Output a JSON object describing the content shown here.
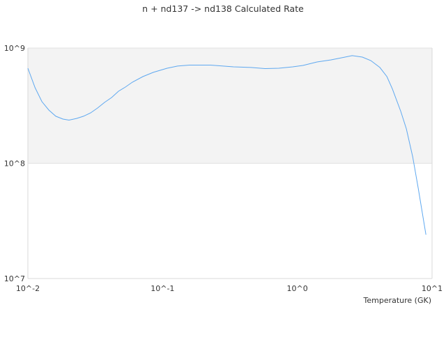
{
  "chart_data": {
    "type": "line",
    "title": "n + nd137 -> nd138 Calculated Rate",
    "xlabel": "Temperature (GK)",
    "ylabel": "",
    "xscale": "log",
    "yscale": "log",
    "xlim": [
      0.01,
      10
    ],
    "ylim": [
      10000000.0,
      1000000000.0
    ],
    "xticks": [
      {
        "value": 0.01,
        "label": "10^-2"
      },
      {
        "value": 0.1,
        "label": "10^-1"
      },
      {
        "value": 1,
        "label": "10^0"
      },
      {
        "value": 10,
        "label": "10^1"
      }
    ],
    "yticks": [
      {
        "value": 10000000.0,
        "label": "10^7"
      },
      {
        "value": 100000000.0,
        "label": "10^8"
      },
      {
        "value": 1000000000.0,
        "label": "10^9"
      }
    ],
    "grid": false,
    "alternating_bands": true,
    "band_color": "#f3f3f3",
    "line_color": "#5ea8f0",
    "series": [
      {
        "x": [
          0.01,
          0.0113,
          0.0127,
          0.0143,
          0.0161,
          0.0182,
          0.0202,
          0.023,
          0.0259,
          0.0292,
          0.0329,
          0.0371,
          0.0418,
          0.0471,
          0.053,
          0.0597,
          0.0714,
          0.0853,
          0.108,
          0.129,
          0.158,
          0.227,
          0.336,
          0.452,
          0.574,
          0.728,
          0.925,
          1.1,
          1.4,
          1.78,
          2.26,
          2.55,
          3.04,
          3.51,
          4.1,
          4.62,
          5.08,
          5.86,
          6.44,
          7.18,
          7.89,
          9.0
        ],
        "y": [
          668000000.0,
          453000000.0,
          343000000.0,
          290000000.0,
          256000000.0,
          242000000.0,
          237000000.0,
          245000000.0,
          256000000.0,
          274000000.0,
          302000000.0,
          338000000.0,
          372000000.0,
          422000000.0,
          459000000.0,
          506000000.0,
          565000000.0,
          615000000.0,
          668000000.0,
          697000000.0,
          711000000.0,
          711000000.0,
          687000000.0,
          678000000.0,
          663000000.0,
          668000000.0,
          687000000.0,
          706000000.0,
          757000000.0,
          789000000.0,
          834000000.0,
          859000000.0,
          834000000.0,
          778000000.0,
          678000000.0,
          565000000.0,
          441000000.0,
          282000000.0,
          199000000.0,
          114000000.0,
          61000000.0,
          24000000.0
        ]
      }
    ]
  }
}
